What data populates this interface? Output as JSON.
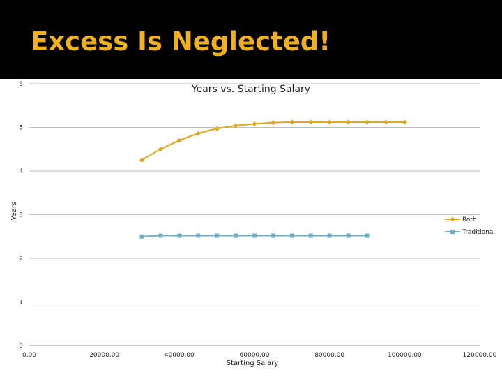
{
  "slide": {
    "title": "Excess Is Neglected!"
  },
  "colors": {
    "title": "#f2b01e",
    "roth": "#e0a61c",
    "traditional": "#6fb0c6",
    "grid": "#bfbfbf",
    "background": "#ffffff"
  },
  "chart_data": {
    "type": "line",
    "title": "Years vs. Starting Salary",
    "xlabel": "Starting Salary",
    "ylabel": "Years",
    "xlim": [
      0,
      120000
    ],
    "ylim": [
      0,
      6
    ],
    "x_ticks": [
      0,
      20000,
      40000,
      60000,
      80000,
      100000,
      120000
    ],
    "x_tick_labels": [
      "0.00",
      "20000.00",
      "40000.00",
      "60000.00",
      "80000.00",
      "100000.00",
      "120000.00"
    ],
    "y_ticks": [
      0,
      1,
      2,
      3,
      4,
      5,
      6
    ],
    "y_tick_labels": [
      "0",
      "1",
      "2",
      "3",
      "4",
      "5",
      "6"
    ],
    "grid": "horizontal",
    "legend_position": "right",
    "series": [
      {
        "name": "Roth",
        "marker": "diamond",
        "points": [
          [
            30000,
            4.25
          ],
          [
            35000,
            4.5
          ],
          [
            40000,
            4.7
          ],
          [
            45000,
            4.86
          ],
          [
            50000,
            4.97
          ],
          [
            55000,
            5.04
          ],
          [
            60000,
            5.08
          ],
          [
            65000,
            5.11
          ],
          [
            70000,
            5.12
          ],
          [
            75000,
            5.12
          ],
          [
            80000,
            5.12
          ],
          [
            85000,
            5.12
          ],
          [
            90000,
            5.12
          ],
          [
            95000,
            5.12
          ],
          [
            100000,
            5.12
          ]
        ]
      },
      {
        "name": "Traditional",
        "marker": "square",
        "points": [
          [
            30000,
            2.5
          ],
          [
            35000,
            2.52
          ],
          [
            40000,
            2.52
          ],
          [
            45000,
            2.52
          ],
          [
            50000,
            2.52
          ],
          [
            55000,
            2.52
          ],
          [
            60000,
            2.52
          ],
          [
            65000,
            2.52
          ],
          [
            70000,
            2.52
          ],
          [
            75000,
            2.52
          ],
          [
            80000,
            2.52
          ],
          [
            85000,
            2.52
          ],
          [
            90000,
            2.52
          ]
        ]
      }
    ]
  }
}
